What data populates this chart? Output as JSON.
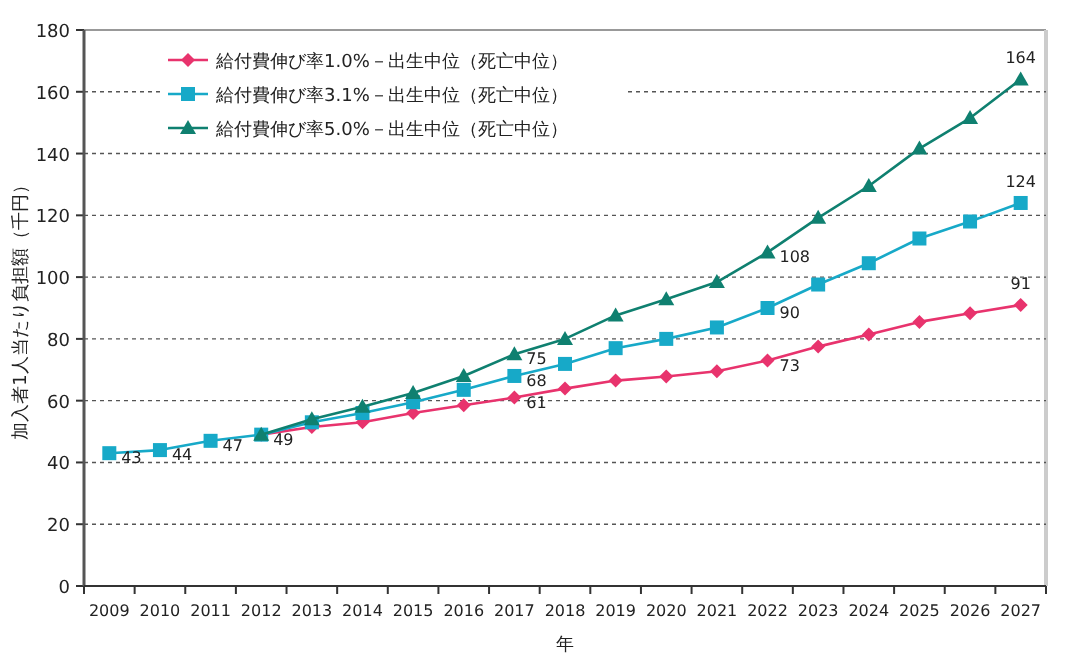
{
  "chart_data": {
    "type": "line",
    "xlabel": "年",
    "ylabel": "加入者1人当たり負担額（千円）",
    "categories": [
      "2009",
      "2010",
      "2011",
      "2012",
      "2013",
      "2014",
      "2015",
      "2016",
      "2017",
      "2018",
      "2019",
      "2020",
      "2021",
      "2022",
      "2023",
      "2024",
      "2025",
      "2026",
      "2027"
    ],
    "ylim": [
      0,
      180
    ],
    "yticks": [
      0,
      20,
      40,
      60,
      80,
      100,
      120,
      140,
      160,
      180
    ],
    "grid": "y",
    "legend": "top left",
    "series": [
      {
        "name": "給付費伸び率1.0%－出生中位（死亡中位）",
        "color": "#e8336d",
        "marker": "diamond",
        "values": [
          null,
          null,
          null,
          49,
          51.5,
          53,
          56,
          58.5,
          61,
          63.9,
          66.5,
          67.8,
          69.5,
          73,
          77.5,
          81.4,
          85.5,
          88.3,
          91
        ],
        "value_labels": [
          null,
          null,
          null,
          null,
          null,
          null,
          null,
          null,
          "61",
          null,
          null,
          null,
          null,
          "73",
          null,
          null,
          null,
          null,
          "91"
        ]
      },
      {
        "name": "給付費伸び率3.1%－出生中位（死亡中位）",
        "color": "#17a9c8",
        "marker": "square",
        "values": [
          43,
          44,
          47,
          49,
          53,
          56,
          59.5,
          63.5,
          68,
          71.9,
          77,
          80,
          83.7,
          90,
          97.6,
          104.5,
          112.5,
          118,
          124
        ],
        "value_labels": [
          "43",
          "44",
          "47",
          "49",
          null,
          null,
          null,
          null,
          "68",
          null,
          null,
          null,
          null,
          "90",
          null,
          null,
          null,
          null,
          "124"
        ]
      },
      {
        "name": "給付費伸び率5.0%－出生中位（死亡中位）",
        "color": "#0f8070",
        "marker": "triangle",
        "values": [
          null,
          null,
          null,
          49,
          54,
          58,
          62.5,
          68,
          75,
          80,
          87.6,
          92.8,
          98.4,
          108,
          119.2,
          129.5,
          141.6,
          151.5,
          164
        ],
        "value_labels": [
          null,
          null,
          null,
          null,
          null,
          null,
          null,
          null,
          "75",
          null,
          null,
          null,
          null,
          "108",
          null,
          null,
          null,
          null,
          "164"
        ]
      }
    ]
  }
}
